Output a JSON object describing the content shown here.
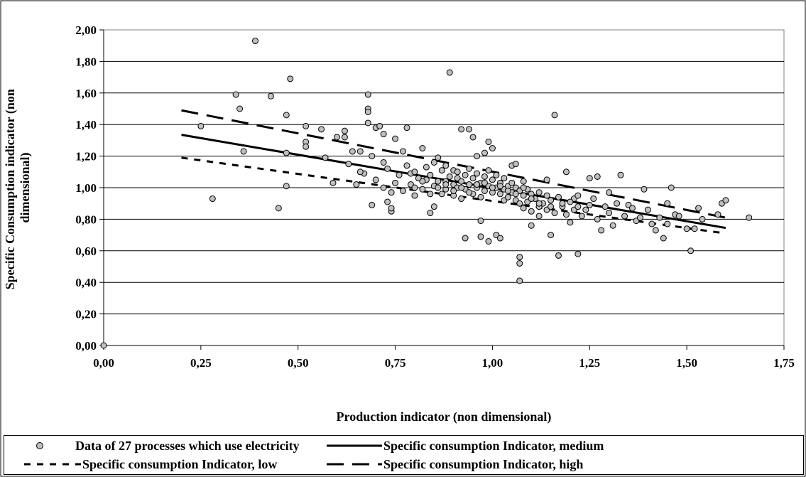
{
  "chart_data": {
    "type": "scatter",
    "title": "",
    "xlabel": "Production indicator (non dimensional)",
    "ylabel": "Specific Consumption indicator (non dimensional)",
    "xlim": [
      0,
      1.75
    ],
    "ylim": [
      0,
      2.0
    ],
    "x_ticks": [
      "0,00",
      "0,25",
      "0,50",
      "0,75",
      "1,00",
      "1,25",
      "1,50",
      "1,75"
    ],
    "y_ticks": [
      "0,00",
      "0,20",
      "0,40",
      "0,60",
      "0,80",
      "1,00",
      "1,20",
      "1,40",
      "1,60",
      "1,80",
      "2,00"
    ],
    "grid": "horizontal",
    "legend_position": "bottom",
    "series": [
      {
        "name": "Data of 27 processes which use electricity",
        "kind": "points",
        "color": "#bfbfbf",
        "points": [
          [
            0.0,
            0.0
          ],
          [
            0.25,
            1.39
          ],
          [
            0.28,
            0.93
          ],
          [
            0.34,
            1.59
          ],
          [
            0.35,
            1.5
          ],
          [
            0.36,
            1.23
          ],
          [
            0.39,
            1.93
          ],
          [
            0.43,
            1.58
          ],
          [
            0.45,
            0.87
          ],
          [
            0.47,
            1.46
          ],
          [
            0.47,
            1.01
          ],
          [
            0.48,
            1.69
          ],
          [
            0.47,
            1.22
          ],
          [
            0.52,
            1.39
          ],
          [
            0.52,
            1.29
          ],
          [
            0.52,
            1.26
          ],
          [
            0.56,
            1.37
          ],
          [
            0.57,
            1.19
          ],
          [
            0.59,
            1.03
          ],
          [
            0.6,
            1.32
          ],
          [
            0.62,
            1.36
          ],
          [
            0.62,
            1.32
          ],
          [
            0.63,
            1.15
          ],
          [
            0.64,
            1.23
          ],
          [
            0.65,
            1.02
          ],
          [
            0.66,
            1.23
          ],
          [
            0.67,
            1.09
          ],
          [
            0.68,
            1.59
          ],
          [
            0.68,
            1.5
          ],
          [
            0.68,
            1.48
          ],
          [
            0.68,
            1.41
          ],
          [
            0.69,
            0.89
          ],
          [
            0.69,
            1.2
          ],
          [
            0.7,
            1.38
          ],
          [
            0.71,
            1.39
          ],
          [
            0.72,
            1.34
          ],
          [
            0.72,
            1.16
          ],
          [
            0.73,
            0.91
          ],
          [
            0.74,
            0.85
          ],
          [
            0.74,
            0.87
          ],
          [
            0.75,
            1.31
          ],
          [
            0.77,
            1.23
          ],
          [
            0.78,
            1.38
          ],
          [
            0.79,
            1.09
          ],
          [
            0.8,
            0.95
          ],
          [
            0.82,
            1.25
          ],
          [
            0.83,
            1.05
          ],
          [
            0.84,
            0.84
          ],
          [
            0.85,
            0.88
          ],
          [
            0.86,
            1.19
          ],
          [
            0.88,
            1.04
          ],
          [
            0.89,
            1.73
          ],
          [
            0.9,
            1.11
          ],
          [
            0.91,
            1.06
          ],
          [
            0.92,
            1.37
          ],
          [
            0.93,
            0.68
          ],
          [
            0.94,
            1.37
          ],
          [
            0.95,
            1.32
          ],
          [
            0.96,
            1.2
          ],
          [
            0.97,
            0.69
          ],
          [
            0.97,
            0.79
          ],
          [
            0.98,
            1.22
          ],
          [
            0.99,
            0.66
          ],
          [
            0.99,
            1.29
          ],
          [
            1.0,
            1.25
          ],
          [
            1.01,
            0.7
          ],
          [
            1.02,
            0.68
          ],
          [
            1.03,
            0.92
          ],
          [
            1.05,
            1.14
          ],
          [
            1.06,
            1.15
          ],
          [
            1.07,
            0.56
          ],
          [
            1.07,
            0.52
          ],
          [
            1.07,
            0.41
          ],
          [
            1.08,
            1.04
          ],
          [
            1.1,
            0.76
          ],
          [
            1.12,
            0.88
          ],
          [
            1.14,
            1.05
          ],
          [
            1.15,
            0.7
          ],
          [
            1.16,
            1.46
          ],
          [
            1.17,
            0.57
          ],
          [
            1.19,
            1.1
          ],
          [
            1.2,
            0.78
          ],
          [
            1.21,
            0.93
          ],
          [
            1.22,
            0.58
          ],
          [
            1.24,
            0.86
          ],
          [
            1.25,
            1.06
          ],
          [
            1.27,
            1.07
          ],
          [
            1.28,
            0.73
          ],
          [
            1.3,
            0.97
          ],
          [
            1.31,
            0.76
          ],
          [
            1.33,
            1.08
          ],
          [
            1.35,
            0.89
          ],
          [
            1.37,
            0.79
          ],
          [
            1.39,
            0.99
          ],
          [
            1.41,
            0.77
          ],
          [
            1.42,
            0.73
          ],
          [
            1.44,
            0.68
          ],
          [
            1.45,
            0.77
          ],
          [
            1.46,
            1.0
          ],
          [
            1.47,
            0.83
          ],
          [
            1.5,
            0.74
          ],
          [
            1.51,
            0.6
          ],
          [
            1.52,
            0.74
          ],
          [
            1.53,
            0.87
          ],
          [
            1.54,
            0.8
          ],
          [
            1.58,
            0.83
          ],
          [
            1.59,
            0.9
          ],
          [
            1.6,
            0.92
          ],
          [
            1.66,
            0.81
          ],
          [
            0.66,
            1.1
          ],
          [
            0.7,
            1.05
          ],
          [
            0.72,
            1.0
          ],
          [
            0.73,
            1.12
          ],
          [
            0.74,
            0.97
          ],
          [
            0.75,
            1.03
          ],
          [
            0.76,
            1.08
          ],
          [
            0.77,
            0.98
          ],
          [
            0.78,
            1.14
          ],
          [
            0.79,
            1.02
          ],
          [
            0.8,
            1.1
          ],
          [
            0.81,
            1.06
          ],
          [
            0.82,
            0.99
          ],
          [
            0.83,
            1.13
          ],
          [
            0.84,
            1.08
          ],
          [
            0.85,
            1.01
          ],
          [
            0.85,
            1.16
          ],
          [
            0.86,
            1.04
          ],
          [
            0.87,
            0.96
          ],
          [
            0.87,
            1.11
          ],
          [
            0.88,
            1.14
          ],
          [
            0.88,
            0.99
          ],
          [
            0.89,
            1.07
          ],
          [
            0.9,
            1.02
          ],
          [
            0.9,
            0.95
          ],
          [
            0.91,
            1.1
          ],
          [
            0.91,
            1.0
          ],
          [
            0.92,
            1.04
          ],
          [
            0.92,
            0.93
          ],
          [
            0.93,
            1.08
          ],
          [
            0.93,
            0.99
          ],
          [
            0.94,
            1.12
          ],
          [
            0.94,
            1.02
          ],
          [
            0.95,
            0.96
          ],
          [
            0.95,
            1.06
          ],
          [
            0.96,
            1.0
          ],
          [
            0.96,
            1.09
          ],
          [
            0.97,
            0.94
          ],
          [
            0.97,
            1.03
          ],
          [
            0.98,
            1.07
          ],
          [
            0.98,
            0.98
          ],
          [
            0.99,
            1.01
          ],
          [
            0.99,
            1.11
          ],
          [
            1.0,
            0.97
          ],
          [
            1.0,
            1.05
          ],
          [
            1.01,
            1.0
          ],
          [
            1.01,
            1.08
          ],
          [
            1.02,
            0.96
          ],
          [
            1.02,
            1.03
          ],
          [
            1.03,
            1.06
          ],
          [
            1.03,
            0.99
          ],
          [
            1.04,
            1.01
          ],
          [
            1.04,
            0.94
          ],
          [
            1.05,
            1.03
          ],
          [
            1.05,
            0.97
          ],
          [
            1.06,
            1.0
          ],
          [
            1.06,
            0.92
          ],
          [
            1.07,
            0.98
          ],
          [
            1.07,
            0.9
          ],
          [
            1.08,
            0.95
          ],
          [
            1.08,
            0.87
          ],
          [
            1.09,
            0.99
          ],
          [
            1.09,
            0.91
          ],
          [
            1.1,
            0.96
          ],
          [
            1.1,
            0.85
          ],
          [
            1.11,
            0.93
          ],
          [
            1.12,
            0.97
          ],
          [
            1.12,
            0.82
          ],
          [
            1.13,
            0.9
          ],
          [
            1.14,
            0.95
          ],
          [
            1.14,
            0.86
          ],
          [
            1.15,
            0.92
          ],
          [
            1.16,
            0.84
          ],
          [
            1.17,
            0.94
          ],
          [
            1.18,
            0.88
          ],
          [
            1.19,
            0.83
          ],
          [
            1.2,
            0.91
          ],
          [
            1.21,
            0.86
          ],
          [
            1.22,
            0.95
          ],
          [
            1.23,
            0.82
          ],
          [
            1.25,
            0.89
          ],
          [
            1.26,
            0.93
          ],
          [
            1.27,
            0.8
          ],
          [
            1.29,
            0.88
          ],
          [
            1.3,
            0.84
          ],
          [
            1.32,
            0.9
          ],
          [
            1.34,
            0.82
          ],
          [
            1.36,
            0.87
          ],
          [
            1.38,
            0.81
          ],
          [
            1.4,
            0.86
          ],
          [
            1.43,
            0.81
          ],
          [
            1.45,
            0.9
          ],
          [
            1.48,
            0.82
          ],
          [
            0.8,
            1.0
          ],
          [
            0.82,
            1.04
          ],
          [
            0.84,
            0.96
          ],
          [
            0.86,
            1.0
          ],
          [
            0.88,
            1.02
          ],
          [
            0.9,
            0.98
          ],
          [
            0.92,
            1.0
          ],
          [
            0.94,
            0.97
          ],
          [
            0.96,
            1.02
          ],
          [
            0.98,
            1.03
          ],
          [
            1.0,
            1.0
          ],
          [
            1.02,
            1.01
          ],
          [
            1.04,
            0.98
          ],
          [
            1.06,
            0.96
          ],
          [
            1.08,
            1.0
          ],
          [
            1.1,
            0.93
          ],
          [
            1.12,
            0.9
          ],
          [
            1.15,
            0.88
          ],
          [
            1.18,
            0.9
          ],
          [
            1.22,
            0.88
          ]
        ]
      },
      {
        "name": "Specific consumption Indicator, medium",
        "kind": "line",
        "style": "solid",
        "points": [
          [
            0.2,
            1.335
          ],
          [
            1.6,
            0.745
          ]
        ]
      },
      {
        "name": "Specific consumption Indicator, low",
        "kind": "line",
        "style": "dotted",
        "points": [
          [
            0.2,
            1.19
          ],
          [
            1.6,
            0.71
          ]
        ]
      },
      {
        "name": "Specific consumption Indicator, high",
        "kind": "line",
        "style": "dashed",
        "points": [
          [
            0.2,
            1.49
          ],
          [
            1.6,
            0.81
          ]
        ]
      }
    ]
  }
}
